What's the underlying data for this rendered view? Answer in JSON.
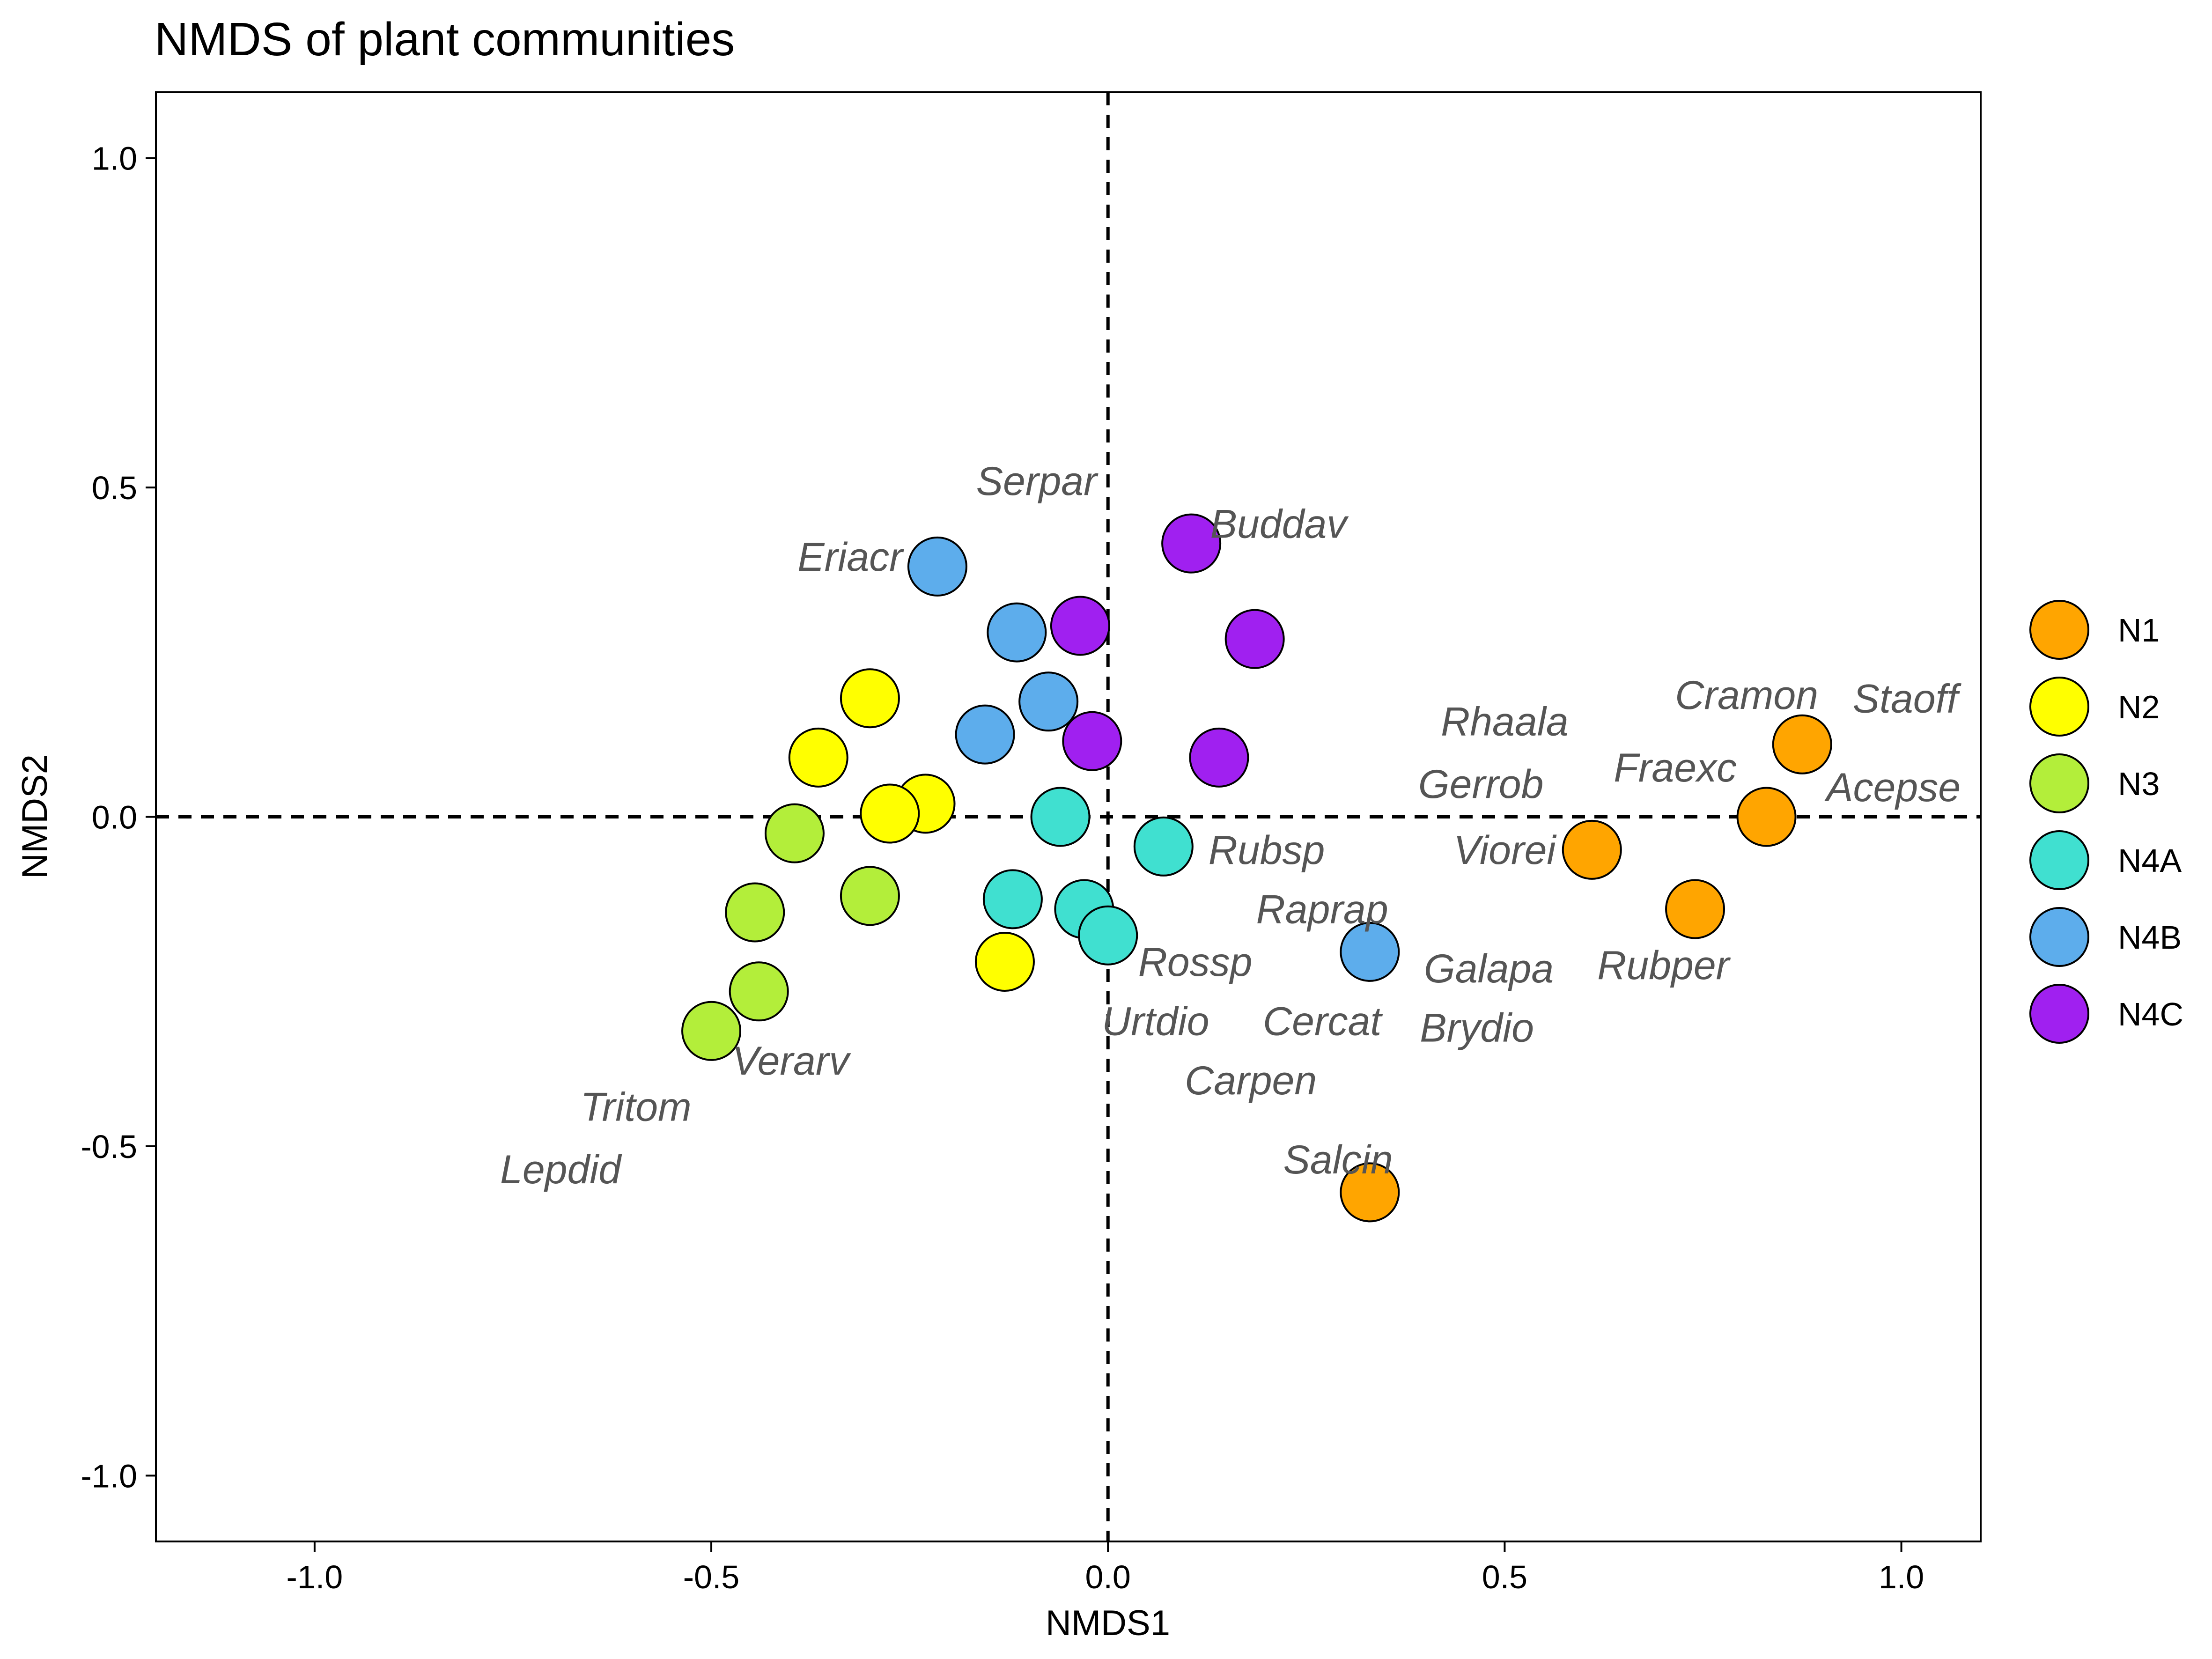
{
  "chart_data": {
    "type": "scatter",
    "title": "NMDS of plant communities",
    "xlabel": "NMDS1",
    "ylabel": "NMDS2",
    "xlim": [
      -1.2,
      1.1
    ],
    "ylim": [
      -1.1,
      1.1
    ],
    "xticks": [
      {
        "value": -1.0,
        "label": "-1.0"
      },
      {
        "value": -0.5,
        "label": "-0.5"
      },
      {
        "value": 0.0,
        "label": "0.0"
      },
      {
        "value": 0.5,
        "label": "0.5"
      },
      {
        "value": 1.0,
        "label": "1.0"
      }
    ],
    "yticks": [
      {
        "value": 1.0,
        "label": "1.0"
      },
      {
        "value": 0.5,
        "label": "0.5"
      },
      {
        "value": 0.0,
        "label": "0.0"
      },
      {
        "value": -0.5,
        "label": "-0.5"
      },
      {
        "value": -1.0,
        "label": "-1.0"
      }
    ],
    "grid": false,
    "reference_lines": {
      "x": 0,
      "y": 0,
      "style": "dashed"
    },
    "legend_position": "right",
    "series": [
      {
        "name": "N1",
        "color": "#FFA500",
        "points": [
          [
            0.33,
            -0.57
          ],
          [
            0.61,
            -0.05
          ],
          [
            0.74,
            -0.14
          ],
          [
            0.83,
            0.0
          ],
          [
            0.875,
            0.11
          ]
        ]
      },
      {
        "name": "N2",
        "color": "#FFFF00",
        "points": [
          [
            -0.3,
            0.18
          ],
          [
            -0.365,
            0.09
          ],
          [
            -0.23,
            0.02
          ],
          [
            -0.275,
            0.005
          ],
          [
            -0.13,
            -0.22
          ]
        ]
      },
      {
        "name": "N3",
        "color": "#B3EE3A",
        "points": [
          [
            -0.395,
            -0.025
          ],
          [
            -0.3,
            -0.12
          ],
          [
            -0.445,
            -0.145
          ],
          [
            -0.44,
            -0.265
          ],
          [
            -0.5,
            -0.325
          ]
        ]
      },
      {
        "name": "N4A",
        "color": "#40E0D0",
        "points": [
          [
            -0.06,
            0.0
          ],
          [
            -0.12,
            -0.125
          ],
          [
            -0.03,
            -0.14
          ],
          [
            0.0,
            -0.18
          ],
          [
            0.07,
            -0.045
          ]
        ]
      },
      {
        "name": "N4B",
        "color": "#5DADEC",
        "points": [
          [
            -0.215,
            0.38
          ],
          [
            -0.115,
            0.28
          ],
          [
            -0.075,
            0.175
          ],
          [
            -0.155,
            0.125
          ],
          [
            0.33,
            -0.205
          ]
        ]
      },
      {
        "name": "N4C",
        "color": "#A020F0",
        "points": [
          [
            0.105,
            0.415
          ],
          [
            -0.035,
            0.29
          ],
          [
            0.185,
            0.27
          ],
          [
            -0.02,
            0.115
          ],
          [
            0.14,
            0.09
          ]
        ]
      }
    ],
    "species_labels": [
      {
        "text": "Serpar",
        "x": -0.09,
        "y": 0.51
      },
      {
        "text": "Buddav",
        "x": 0.215,
        "y": 0.445
      },
      {
        "text": "Eriacr",
        "x": -0.325,
        "y": 0.395
      },
      {
        "text": "Cramon",
        "x": 0.805,
        "y": 0.185
      },
      {
        "text": "Staoff",
        "x": 1.005,
        "y": 0.18
      },
      {
        "text": "Rhaala",
        "x": 0.5,
        "y": 0.145
      },
      {
        "text": "Fraexc",
        "x": 0.715,
        "y": 0.075
      },
      {
        "text": "Gerrob",
        "x": 0.47,
        "y": 0.05
      },
      {
        "text": "Acepse",
        "x": 0.99,
        "y": 0.045
      },
      {
        "text": "Viorei",
        "x": 0.5,
        "y": -0.05
      },
      {
        "text": "Rubsp",
        "x": 0.2,
        "y": -0.05
      },
      {
        "text": "Raprap",
        "x": 0.27,
        "y": -0.14
      },
      {
        "text": "Rossp",
        "x": 0.11,
        "y": -0.22
      },
      {
        "text": "Galapa",
        "x": 0.48,
        "y": -0.23
      },
      {
        "text": "Rubper",
        "x": 0.7,
        "y": -0.225
      },
      {
        "text": "Urtdio",
        "x": 0.06,
        "y": -0.31
      },
      {
        "text": "Cercat",
        "x": 0.27,
        "y": -0.31
      },
      {
        "text": "Brydio",
        "x": 0.465,
        "y": -0.32
      },
      {
        "text": "Verarv",
        "x": -0.4,
        "y": -0.37
      },
      {
        "text": "Carpen",
        "x": 0.18,
        "y": -0.4
      },
      {
        "text": "Tritom",
        "x": -0.595,
        "y": -0.44
      },
      {
        "text": "Salcin",
        "x": 0.29,
        "y": -0.52
      },
      {
        "text": "Lepdid",
        "x": -0.69,
        "y": -0.535
      }
    ]
  }
}
